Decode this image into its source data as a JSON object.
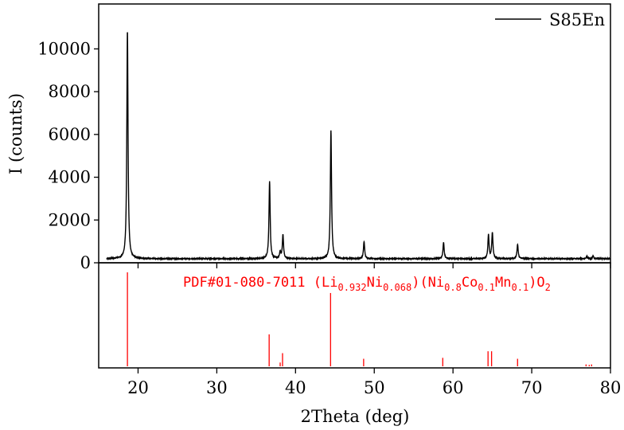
{
  "chart_data": {
    "type": "line",
    "title": "",
    "xlabel": "2Theta (deg)",
    "ylabel": "I (counts)",
    "xlim": [
      15,
      80
    ],
    "ylim": [
      0,
      12100
    ],
    "xticks": [
      20,
      30,
      40,
      50,
      60,
      70,
      80
    ],
    "yticks": [
      0,
      2000,
      4000,
      6000,
      8000,
      10000
    ],
    "grid": false,
    "legend": {
      "position": "top-right",
      "entries": [
        "S85En"
      ]
    },
    "series": [
      {
        "name": "S85En",
        "color": "#000000",
        "x_range": [
          16,
          80
        ],
        "baseline": 190,
        "peaks": [
          {
            "x": 18.65,
            "y": 10900
          },
          {
            "x": 36.7,
            "y": 3800
          },
          {
            "x": 38.05,
            "y": 500
          },
          {
            "x": 38.4,
            "y": 1300
          },
          {
            "x": 44.5,
            "y": 6200
          },
          {
            "x": 48.7,
            "y": 1000
          },
          {
            "x": 58.8,
            "y": 950
          },
          {
            "x": 64.5,
            "y": 1300
          },
          {
            "x": 65.0,
            "y": 1400
          },
          {
            "x": 68.2,
            "y": 850
          },
          {
            "x": 77.0,
            "y": 300
          },
          {
            "x": 77.8,
            "y": 320
          }
        ]
      }
    ],
    "reference": {
      "color": "#ff0000",
      "label_parts": [
        {
          "t": "PDF#01-080-7011 (Li",
          "sub": false
        },
        {
          "t": "0.932",
          "sub": true
        },
        {
          "t": "Ni",
          "sub": false
        },
        {
          "t": "0.068",
          "sub": true
        },
        {
          "t": ")(Ni",
          "sub": false
        },
        {
          "t": "0.8",
          "sub": true
        },
        {
          "t": "Co",
          "sub": false
        },
        {
          "t": "0.1",
          "sub": true
        },
        {
          "t": "Mn",
          "sub": false
        },
        {
          "t": "0.1",
          "sub": true
        },
        {
          "t": ")O",
          "sub": false
        },
        {
          "t": "2",
          "sub": true
        }
      ],
      "sticks": [
        {
          "x": 18.65,
          "rel": 100
        },
        {
          "x": 36.65,
          "rel": 34
        },
        {
          "x": 38.05,
          "rel": 4
        },
        {
          "x": 38.35,
          "rel": 14
        },
        {
          "x": 44.45,
          "rel": 78
        },
        {
          "x": 48.65,
          "rel": 8
        },
        {
          "x": 58.7,
          "rel": 9
        },
        {
          "x": 64.45,
          "rel": 16
        },
        {
          "x": 64.9,
          "rel": 16
        },
        {
          "x": 68.2,
          "rel": 8
        },
        {
          "x": 76.9,
          "rel": 2
        },
        {
          "x": 77.3,
          "rel": 1.5
        },
        {
          "x": 77.6,
          "rel": 2
        }
      ]
    }
  }
}
